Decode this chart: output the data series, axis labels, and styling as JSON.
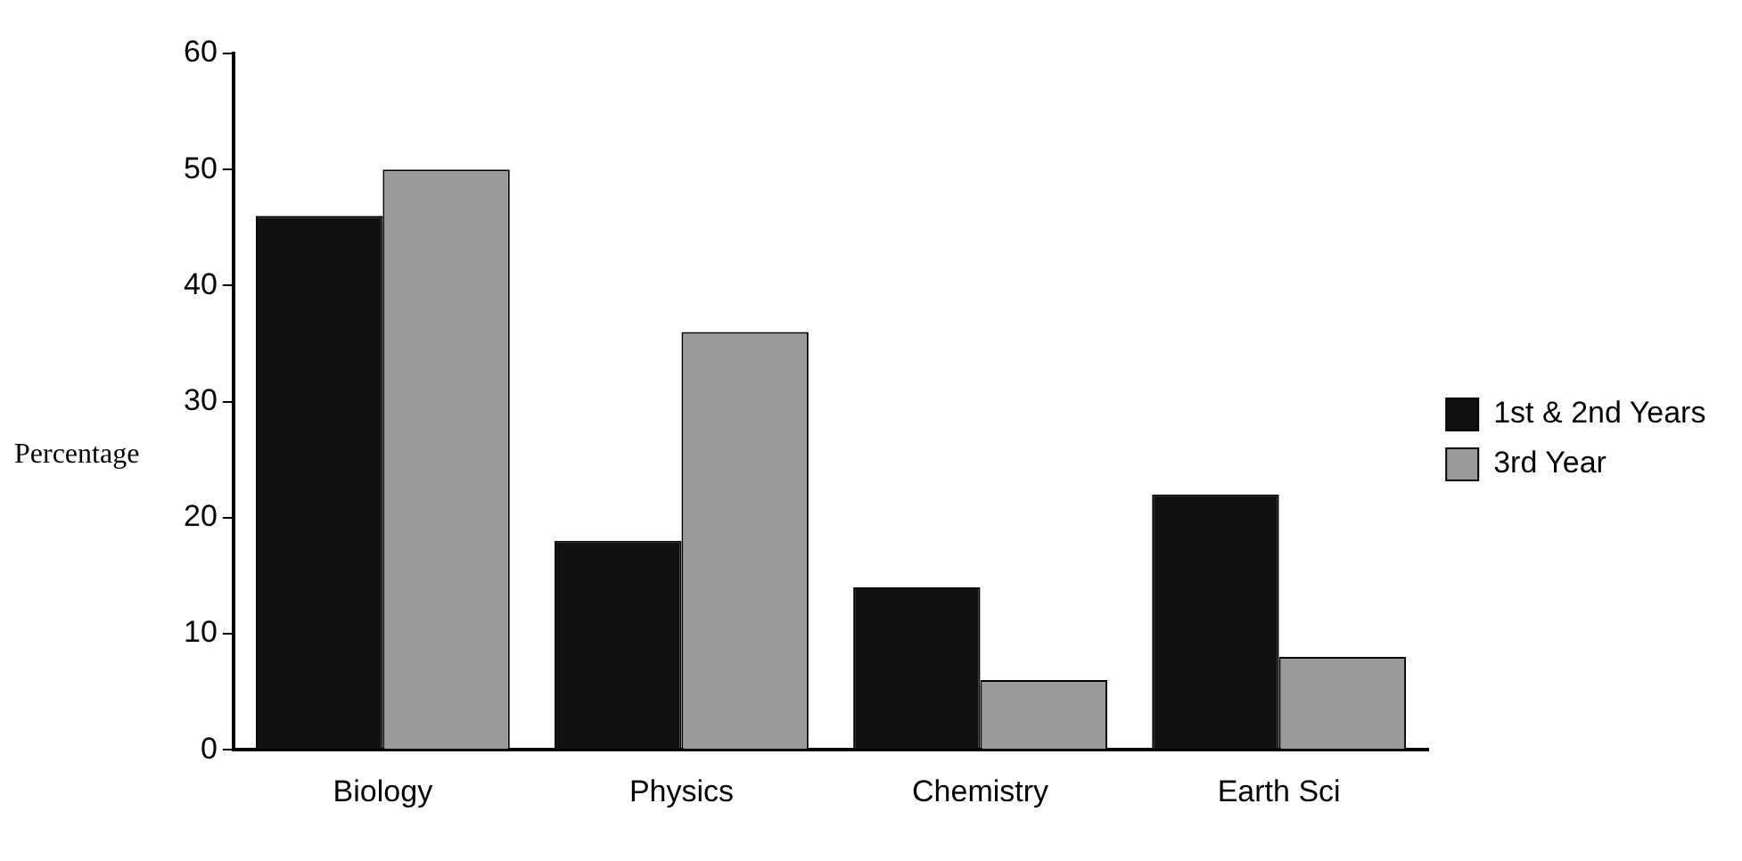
{
  "chart_data": {
    "type": "bar",
    "ylabel": "Percentage",
    "categories": [
      "Biology",
      "Physics",
      "Chemistry",
      "Earth Sci"
    ],
    "series": [
      {
        "name": "1st & 2nd Years",
        "color": "#111111",
        "values": [
          46,
          18,
          14,
          22
        ]
      },
      {
        "name": "3rd Year",
        "color": "#9a9a9a",
        "values": [
          50,
          36,
          6,
          8
        ]
      }
    ],
    "ylim": [
      0,
      60
    ],
    "yticks": [
      0,
      10,
      20,
      30,
      40,
      50,
      60
    ],
    "grid": false,
    "legend": "right"
  }
}
